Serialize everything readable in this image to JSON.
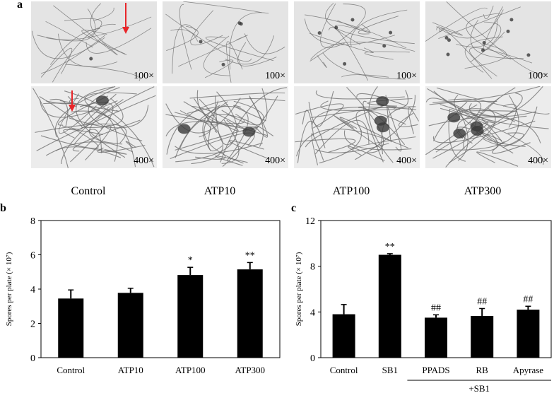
{
  "panels": {
    "a": "a",
    "b": "b",
    "c": "c"
  },
  "micrographs": {
    "columns": [
      "Control",
      "ATP10",
      "ATP100",
      "ATP300"
    ],
    "magnifications": [
      "100×",
      "400×"
    ],
    "arrow_color": "#e8262a"
  },
  "chart_data": [
    {
      "type": "bar",
      "panel": "b",
      "categories": [
        "Control",
        "ATP10",
        "ATP100",
        "ATP300"
      ],
      "values": [
        3.45,
        3.78,
        4.82,
        5.15
      ],
      "errors": [
        0.5,
        0.27,
        0.45,
        0.4
      ],
      "annotations": [
        "",
        "",
        "*",
        "**"
      ],
      "ylabel": "Spores per plate (× 10⁷)",
      "ylim": [
        0,
        8
      ],
      "yticks": [
        0,
        2,
        4,
        6,
        8
      ],
      "bar_color": "#000000",
      "grid": false
    },
    {
      "type": "bar",
      "panel": "c",
      "categories": [
        "Control",
        "SB1",
        "PPADS",
        "RB",
        "Apyrase"
      ],
      "values": [
        3.8,
        9.0,
        3.5,
        3.65,
        4.2
      ],
      "errors": [
        0.85,
        0.1,
        0.25,
        0.65,
        0.3
      ],
      "annotations": [
        "",
        "**",
        "##",
        "##",
        "##"
      ],
      "group_label": "+SB1",
      "ylabel": "Spores per plate (× 10⁷)",
      "ylim": [
        0,
        12
      ],
      "yticks": [
        0,
        4,
        8,
        12
      ],
      "bar_color": "#000000",
      "grid": false
    }
  ]
}
